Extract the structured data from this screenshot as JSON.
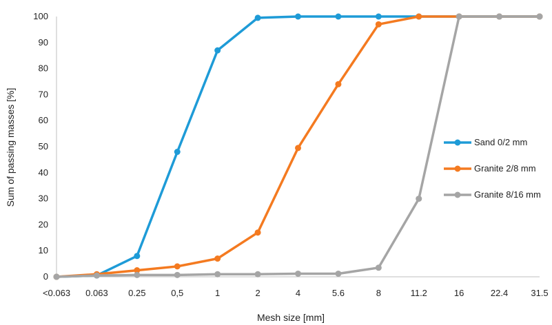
{
  "chart_data": {
    "type": "line",
    "xlabel": "Mesh size [mm]",
    "ylabel": "Sum of passing masses [%]",
    "ylim": [
      0,
      100
    ],
    "yticks": [
      "0",
      "10",
      "20",
      "30",
      "40",
      "50",
      "60",
      "70",
      "80",
      "90",
      "100"
    ],
    "categories": [
      "<0.063",
      "0.063",
      "0.25",
      "0,5",
      "1",
      "2",
      "4",
      "5.6",
      "8",
      "11.2",
      "16",
      "22.4",
      "31.5"
    ],
    "grid": false,
    "legend_position": "right",
    "series": [
      {
        "name": "Sand 0/2 mm",
        "color": "#1e9bd7",
        "values": [
          0,
          0.5,
          8,
          48,
          87,
          99.5,
          100,
          100,
          100,
          100,
          100,
          100,
          100
        ]
      },
      {
        "name": "Granite 2/8 mm",
        "color": "#f47a20",
        "values": [
          0,
          1,
          2.5,
          4,
          7,
          17,
          49.5,
          74,
          97,
          100,
          100,
          100,
          100
        ]
      },
      {
        "name": "Granite 8/16 mm",
        "color": "#a5a5a5",
        "values": [
          0,
          0.5,
          0.7,
          0.7,
          1,
          1,
          1.2,
          1.2,
          3.5,
          30,
          100,
          100,
          100
        ]
      }
    ]
  }
}
